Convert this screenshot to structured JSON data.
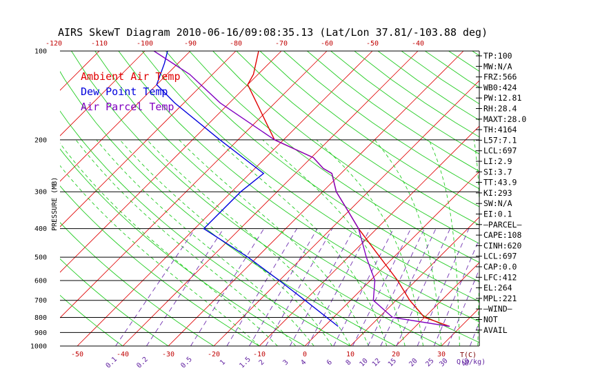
{
  "chart_data": {
    "type": "skewt",
    "title": "AIRS SkewT Diagram 2010-06-16/09:08:35.13 (Lat/Lon 37.81/-103.88 deg)",
    "ylabel": "PRESSURE (MB)",
    "xlabel": "T(C)",
    "mixing_ratio_unit": "Q(g/kg)",
    "y_scale": "log",
    "ylim": [
      1000,
      100
    ],
    "pressure_ticks": [
      100,
      200,
      300,
      400,
      500,
      600,
      700,
      800,
      900,
      1000
    ],
    "bottom_temp_ticks": [
      -50,
      -40,
      -30,
      -20,
      -10,
      0,
      10,
      20,
      30
    ],
    "top_temp_ticks": [
      -120,
      -110,
      -100,
      -90,
      -80,
      -70,
      -60,
      -50,
      -40
    ],
    "mixing_ratio_ticks": [
      "0.1",
      "0.2",
      "0.5",
      "1",
      "1.5",
      "2",
      "3",
      "4",
      "6",
      "8",
      "10",
      "12",
      "15",
      "20",
      "25",
      "30",
      "40"
    ],
    "legend": [
      {
        "name": "Ambient Air Temp",
        "color": "#e00000"
      },
      {
        "name": "Dew Point Temp",
        "color": "#0000dd"
      },
      {
        "name": "Air Parcel Temp",
        "color": "#8000c0"
      }
    ],
    "series": [
      {
        "name": "Ambient Air Temp",
        "color": "#e00000",
        "points": [
          [
            858,
            27.5
          ],
          [
            800,
            20
          ],
          [
            700,
            13
          ],
          [
            600,
            6
          ],
          [
            500,
            -3
          ],
          [
            400,
            -14
          ],
          [
            350,
            -20
          ],
          [
            300,
            -27
          ],
          [
            260,
            -32
          ],
          [
            250,
            -35
          ],
          [
            230,
            -39.5
          ],
          [
            200,
            -52
          ],
          [
            150,
            -64
          ],
          [
            130,
            -70
          ],
          [
            120,
            -71
          ],
          [
            100,
            -75
          ]
        ]
      },
      {
        "name": "Dew Point Temp",
        "color": "#0000dd",
        "points": [
          [
            858,
            3
          ],
          [
            700,
            -10
          ],
          [
            600,
            -20
          ],
          [
            500,
            -32
          ],
          [
            400,
            -48
          ],
          [
            300,
            -48
          ],
          [
            260,
            -47
          ],
          [
            200,
            -64
          ],
          [
            150,
            -82
          ],
          [
            130,
            -90
          ],
          [
            110,
            -93
          ],
          [
            100,
            -95
          ]
        ]
      },
      {
        "name": "Air Parcel Temp",
        "color": "#8000c0",
        "points": [
          [
            858,
            27.5
          ],
          [
            800,
            13
          ],
          [
            700,
            5
          ],
          [
            600,
            1
          ],
          [
            500,
            -6
          ],
          [
            400,
            -14
          ],
          [
            350,
            -20
          ],
          [
            300,
            -27
          ],
          [
            260,
            -32
          ],
          [
            250,
            -35
          ],
          [
            230,
            -39.5
          ],
          [
            200,
            -52
          ],
          [
            150,
            -72
          ],
          [
            120,
            -85
          ],
          [
            100,
            -98
          ]
        ]
      }
    ],
    "stats": [
      "TP:100",
      "MW:N/A",
      "FRZ:566",
      "WB0:424",
      "PW:12.81",
      "RH:28.4",
      "MAXT:28.0",
      "TH:4164",
      "L57:7.1",
      "LCL:697",
      "LI:2.9",
      "SI:3.7",
      "TT:43.9",
      "KI:293",
      "SW:N/A",
      "EI:0.1",
      "—PARCEL—",
      "CAPE:108",
      "CINH:620",
      "LCL:697",
      "CAP:0.0",
      "LFC:412",
      "EL:264",
      "MPL:221",
      "—WIND—",
      "NOT",
      "AVAIL"
    ],
    "grid": true
  }
}
